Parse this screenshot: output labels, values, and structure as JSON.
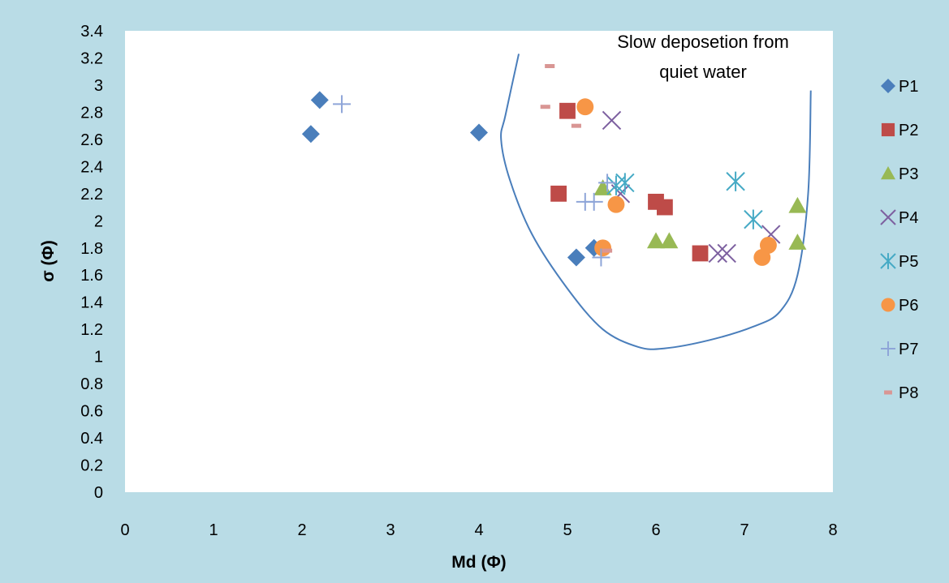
{
  "chart_data": {
    "type": "scatter",
    "title": "",
    "xlabel": "Md (Φ)",
    "ylabel": "σ (Φ)",
    "xlim": [
      0,
      8
    ],
    "ylim": [
      0,
      3.4
    ],
    "x_ticks": [
      "0",
      "1",
      "2",
      "3",
      "4",
      "5",
      "6",
      "7",
      "8"
    ],
    "y_ticks": [
      "0",
      "0.2",
      "0.4",
      "0.6",
      "0.8",
      "1",
      "1.2",
      "1.4",
      "1.6",
      "1.8",
      "2",
      "2.2",
      "2.4",
      "2.6",
      "2.8",
      "3",
      "3.2",
      "3.4"
    ],
    "grid": false,
    "legend_position": "right",
    "annotation": {
      "lines": [
        "Slow deposetion from",
        "quiet water"
      ]
    },
    "boundary_curve": [
      [
        4.45,
        3.23
      ],
      [
        4.3,
        2.78
      ],
      [
        4.25,
        2.6
      ],
      [
        4.35,
        2.3
      ],
      [
        4.6,
        1.9
      ],
      [
        5.0,
        1.5
      ],
      [
        5.4,
        1.2
      ],
      [
        5.8,
        1.07
      ],
      [
        6.1,
        1.06
      ],
      [
        6.6,
        1.12
      ],
      [
        7.1,
        1.22
      ],
      [
        7.4,
        1.33
      ],
      [
        7.6,
        1.6
      ],
      [
        7.72,
        2.2
      ],
      [
        7.75,
        2.96
      ]
    ],
    "series": [
      {
        "name": "P1",
        "marker": "diamond",
        "color": "#4a7ebb",
        "points": [
          [
            2.1,
            2.64
          ],
          [
            2.2,
            2.89
          ],
          [
            4.0,
            2.65
          ],
          [
            5.1,
            1.73
          ],
          [
            5.3,
            1.8
          ]
        ]
      },
      {
        "name": "P2",
        "marker": "square",
        "color": "#be4b48",
        "points": [
          [
            4.9,
            2.2
          ],
          [
            5.0,
            2.81
          ],
          [
            6.0,
            2.14
          ],
          [
            6.1,
            2.1
          ],
          [
            6.5,
            1.76
          ]
        ]
      },
      {
        "name": "P3",
        "marker": "triangle",
        "color": "#98b954",
        "points": [
          [
            5.4,
            2.24
          ],
          [
            6.0,
            1.85
          ],
          [
            6.15,
            1.85
          ],
          [
            7.6,
            2.11
          ],
          [
            7.6,
            1.84
          ]
        ]
      },
      {
        "name": "P4",
        "marker": "x",
        "color": "#7d60a0",
        "points": [
          [
            5.5,
            2.74
          ],
          [
            5.6,
            2.2
          ],
          [
            6.7,
            1.76
          ],
          [
            6.8,
            1.76
          ],
          [
            7.3,
            1.9
          ]
        ]
      },
      {
        "name": "P5",
        "marker": "asterisk",
        "color": "#46aac5",
        "points": [
          [
            5.55,
            2.26
          ],
          [
            5.65,
            2.28
          ],
          [
            6.9,
            2.29
          ],
          [
            7.1,
            2.01
          ]
        ]
      },
      {
        "name": "P6",
        "marker": "circle",
        "color": "#f79646",
        "points": [
          [
            5.2,
            2.84
          ],
          [
            5.4,
            1.8
          ],
          [
            5.55,
            2.12
          ],
          [
            7.2,
            1.73
          ],
          [
            7.27,
            1.82
          ]
        ]
      },
      {
        "name": "P7",
        "marker": "plus",
        "color": "#8ea5d8",
        "points": [
          [
            2.45,
            2.86
          ],
          [
            5.2,
            2.14
          ],
          [
            5.3,
            2.14
          ],
          [
            5.38,
            1.73
          ],
          [
            5.45,
            2.28
          ]
        ]
      },
      {
        "name": "P8",
        "marker": "dash",
        "color": "#d99694",
        "points": [
          [
            4.8,
            3.14
          ],
          [
            4.75,
            2.84
          ],
          [
            5.1,
            2.7
          ],
          [
            5.45,
            1.78
          ]
        ]
      }
    ]
  }
}
